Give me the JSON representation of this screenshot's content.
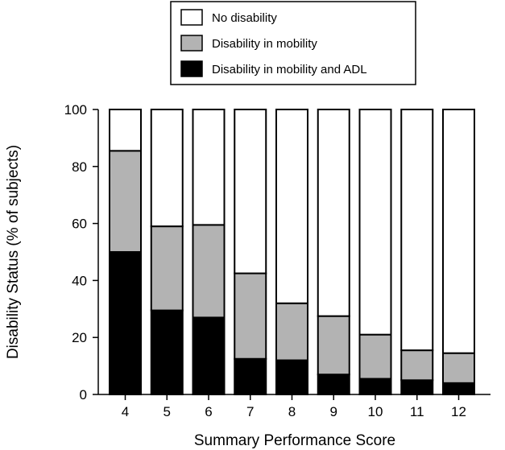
{
  "chart_data": {
    "type": "bar",
    "stacked": true,
    "categories": [
      "4",
      "5",
      "6",
      "7",
      "8",
      "9",
      "10",
      "11",
      "12"
    ],
    "series": [
      {
        "name": "Disability in mobility and ADL",
        "color": "#000000",
        "values": [
          50,
          29.5,
          27,
          12.5,
          12,
          7,
          5.5,
          5,
          4
        ]
      },
      {
        "name": "Disability in mobility",
        "color": "#b3b3b3",
        "values": [
          35.5,
          29.5,
          32.5,
          30,
          20,
          20.5,
          15.5,
          10.5,
          10.5
        ]
      },
      {
        "name": "No disability",
        "color": "#ffffff",
        "values": [
          14.5,
          41,
          40.5,
          57.5,
          68,
          72.5,
          79,
          84.5,
          85.5
        ]
      }
    ],
    "legend": [
      "No disability",
      "Disability in mobility",
      "Disability in mobility and ADL"
    ],
    "legend_position": "top",
    "xlabel": "Summary Performance Score",
    "ylabel": "Disability Status (% of subjects)",
    "ylim": [
      0,
      100
    ],
    "yticks": [
      "0",
      "20",
      "40",
      "60",
      "80",
      "100"
    ],
    "grid": false
  }
}
